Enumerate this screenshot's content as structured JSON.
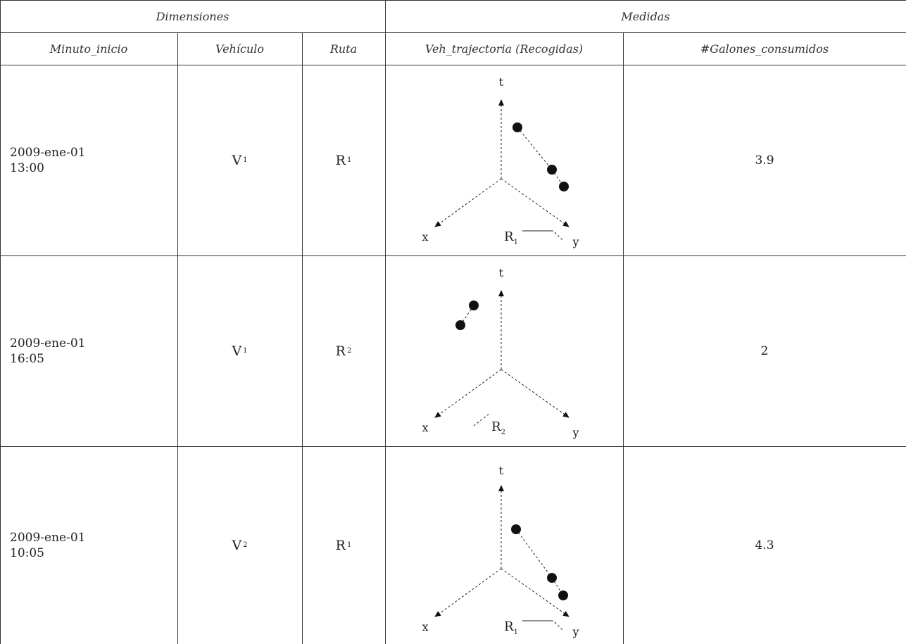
{
  "header": {
    "group_dimensions": "Dimensiones",
    "group_medidas": "Medidas",
    "columns": [
      "Minuto_inicio",
      "Vehículo",
      "Ruta",
      "Veh_trajectoria (Recogidas)",
      "#Galones_consumidos"
    ]
  },
  "rows": [
    {
      "date": "2009-ene-01",
      "time": "13:00",
      "vehicle": "V",
      "vehicle_sub": "1",
      "route": "R",
      "route_sub": "1",
      "gallons": "3.9"
    },
    {
      "date": "2009-ene-01",
      "time": "16:05",
      "vehicle": "V",
      "vehicle_sub": "1",
      "route": "R",
      "route_sub": "2",
      "gallons": "2"
    },
    {
      "date": "2009-ene-01",
      "time": "10:05",
      "vehicle": "V",
      "vehicle_sub": "2",
      "route": "R",
      "route_sub": "1",
      "gallons": "4.3"
    }
  ],
  "axis_labels": {
    "t": "t",
    "x": "x",
    "y": "y"
  },
  "diagram_route_labels": [
    {
      "letter": "R",
      "sub": "1"
    },
    {
      "letter": "R",
      "sub": "2"
    },
    {
      "letter": "R",
      "sub": "1"
    }
  ]
}
